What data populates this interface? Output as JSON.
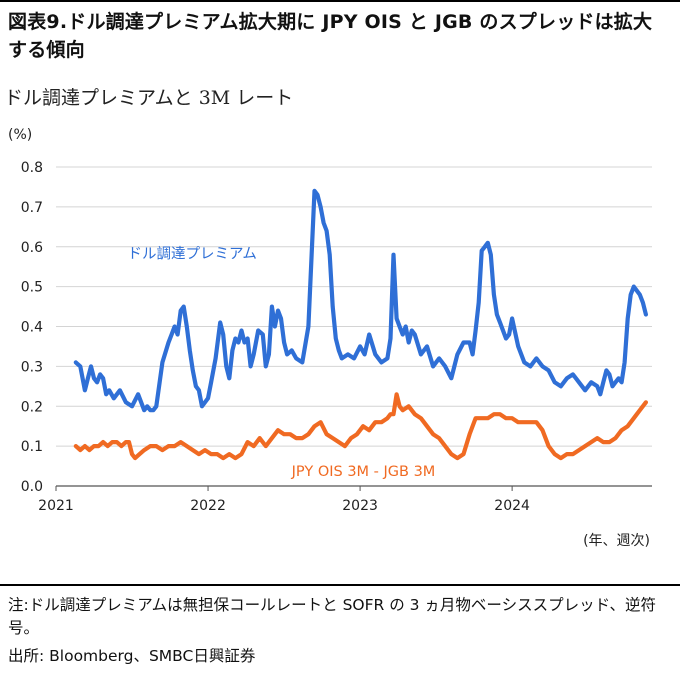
{
  "figure": {
    "title": "図表9.ドル調達プレミアム拡大期に JPY OIS と JGB のスプレッドは拡大する傾向"
  },
  "chart_data": {
    "type": "line",
    "title": "ドル調達プレミアムと 3M レート",
    "ylabel": "(%)",
    "xlabel": "(年、週次)",
    "ylim": [
      0,
      0.8
    ],
    "yticks": [
      "0.0",
      "0.1",
      "0.2",
      "0.3",
      "0.4",
      "0.5",
      "0.6",
      "0.7",
      "0.8"
    ],
    "xticks": [
      "2021",
      "2022",
      "2023",
      "2024"
    ],
    "grid": true,
    "series": [
      {
        "name": "ドル調達プレミアム",
        "color": "#2f6fd6",
        "x": [
          2021.13,
          2021.16,
          2021.19,
          2021.21,
          2021.23,
          2021.25,
          2021.27,
          2021.29,
          2021.31,
          2021.33,
          2021.35,
          2021.38,
          2021.42,
          2021.46,
          2021.5,
          2021.54,
          2021.58,
          2021.6,
          2021.62,
          2021.64,
          2021.66,
          2021.7,
          2021.74,
          2021.76,
          2021.78,
          2021.8,
          2021.82,
          2021.84,
          2021.86,
          2021.88,
          2021.9,
          2021.92,
          2021.94,
          2021.96,
          2021.98,
          2022.0,
          2022.02,
          2022.05,
          2022.08,
          2022.1,
          2022.12,
          2022.14,
          2022.16,
          2022.18,
          2022.2,
          2022.22,
          2022.24,
          2022.26,
          2022.28,
          2022.3,
          2022.33,
          2022.36,
          2022.38,
          2022.4,
          2022.42,
          2022.44,
          2022.46,
          2022.48,
          2022.5,
          2022.52,
          2022.55,
          2022.58,
          2022.62,
          2022.66,
          2022.7,
          2022.72,
          2022.74,
          2022.76,
          2022.78,
          2022.8,
          2022.82,
          2022.84,
          2022.86,
          2022.88,
          2022.92,
          2022.96,
          2023.0,
          2023.03,
          2023.06,
          2023.1,
          2023.14,
          2023.18,
          2023.2,
          2023.22,
          2023.24,
          2023.26,
          2023.28,
          2023.3,
          2023.32,
          2023.34,
          2023.36,
          2023.4,
          2023.44,
          2023.48,
          2023.52,
          2023.56,
          2023.6,
          2023.64,
          2023.68,
          2023.72,
          2023.74,
          2023.76,
          2023.78,
          2023.8,
          2023.82,
          2023.84,
          2023.86,
          2023.88,
          2023.9,
          2023.92,
          2023.94,
          2023.96,
          2023.98,
          2024.0,
          2024.04,
          2024.08,
          2024.12,
          2024.16,
          2024.2,
          2024.24,
          2024.28,
          2024.32,
          2024.36,
          2024.4,
          2024.44,
          2024.48,
          2024.52,
          2024.56,
          2024.58,
          2024.6,
          2024.62,
          2024.64,
          2024.66,
          2024.68,
          2024.7,
          2024.72,
          2024.74,
          2024.76,
          2024.78,
          2024.8,
          2024.82,
          2024.84,
          2024.86,
          2024.88
        ],
        "y": [
          0.31,
          0.3,
          0.24,
          0.27,
          0.3,
          0.27,
          0.26,
          0.28,
          0.27,
          0.23,
          0.24,
          0.22,
          0.24,
          0.21,
          0.2,
          0.23,
          0.19,
          0.2,
          0.19,
          0.19,
          0.2,
          0.31,
          0.36,
          0.38,
          0.4,
          0.38,
          0.44,
          0.45,
          0.4,
          0.34,
          0.29,
          0.25,
          0.24,
          0.2,
          0.21,
          0.22,
          0.26,
          0.32,
          0.41,
          0.38,
          0.3,
          0.27,
          0.34,
          0.37,
          0.36,
          0.39,
          0.36,
          0.37,
          0.3,
          0.33,
          0.39,
          0.38,
          0.3,
          0.33,
          0.45,
          0.4,
          0.44,
          0.42,
          0.36,
          0.33,
          0.34,
          0.32,
          0.31,
          0.4,
          0.74,
          0.73,
          0.7,
          0.66,
          0.64,
          0.58,
          0.45,
          0.37,
          0.34,
          0.32,
          0.33,
          0.32,
          0.35,
          0.33,
          0.38,
          0.33,
          0.31,
          0.32,
          0.37,
          0.58,
          0.42,
          0.4,
          0.38,
          0.4,
          0.36,
          0.39,
          0.38,
          0.33,
          0.35,
          0.3,
          0.32,
          0.3,
          0.27,
          0.33,
          0.36,
          0.36,
          0.33,
          0.39,
          0.46,
          0.59,
          0.6,
          0.61,
          0.58,
          0.48,
          0.43,
          0.41,
          0.39,
          0.37,
          0.38,
          0.42,
          0.35,
          0.31,
          0.3,
          0.32,
          0.3,
          0.29,
          0.26,
          0.25,
          0.27,
          0.28,
          0.26,
          0.24,
          0.26,
          0.25,
          0.23,
          0.26,
          0.29,
          0.28,
          0.25,
          0.26,
          0.27,
          0.26,
          0.31,
          0.42,
          0.48,
          0.5,
          0.49,
          0.48,
          0.46,
          0.43
        ]
      },
      {
        "name": "JPY OIS 3M - JGB 3M",
        "color": "#f06a22",
        "x": [
          2021.13,
          2021.16,
          2021.19,
          2021.22,
          2021.25,
          2021.28,
          2021.31,
          2021.34,
          2021.37,
          2021.4,
          2021.43,
          2021.46,
          2021.48,
          2021.5,
          2021.52,
          2021.55,
          2021.58,
          2021.62,
          2021.66,
          2021.7,
          2021.74,
          2021.78,
          2021.82,
          2021.86,
          2021.9,
          2021.94,
          2021.98,
          2022.02,
          2022.06,
          2022.1,
          2022.14,
          2022.18,
          2022.22,
          2022.26,
          2022.3,
          2022.34,
          2022.38,
          2022.42,
          2022.46,
          2022.5,
          2022.54,
          2022.58,
          2022.62,
          2022.66,
          2022.7,
          2022.74,
          2022.78,
          2022.82,
          2022.86,
          2022.9,
          2022.94,
          2022.98,
          2023.02,
          2023.06,
          2023.1,
          2023.14,
          2023.18,
          2023.2,
          2023.22,
          2023.24,
          2023.26,
          2023.28,
          2023.32,
          2023.36,
          2023.4,
          2023.44,
          2023.48,
          2023.52,
          2023.56,
          2023.6,
          2023.64,
          2023.68,
          2023.72,
          2023.76,
          2023.8,
          2023.84,
          2023.88,
          2023.92,
          2023.96,
          2024.0,
          2024.04,
          2024.08,
          2024.12,
          2024.16,
          2024.2,
          2024.24,
          2024.28,
          2024.32,
          2024.36,
          2024.4,
          2024.44,
          2024.48,
          2024.52,
          2024.56,
          2024.6,
          2024.64,
          2024.68,
          2024.72,
          2024.76,
          2024.8,
          2024.84,
          2024.88
        ],
        "y": [
          0.1,
          0.09,
          0.1,
          0.09,
          0.1,
          0.1,
          0.11,
          0.1,
          0.11,
          0.11,
          0.1,
          0.11,
          0.11,
          0.08,
          0.07,
          0.08,
          0.09,
          0.1,
          0.1,
          0.09,
          0.1,
          0.1,
          0.11,
          0.1,
          0.09,
          0.08,
          0.09,
          0.08,
          0.08,
          0.07,
          0.08,
          0.07,
          0.08,
          0.11,
          0.1,
          0.12,
          0.1,
          0.12,
          0.14,
          0.13,
          0.13,
          0.12,
          0.12,
          0.13,
          0.15,
          0.16,
          0.13,
          0.12,
          0.11,
          0.1,
          0.12,
          0.13,
          0.15,
          0.14,
          0.16,
          0.16,
          0.17,
          0.18,
          0.18,
          0.23,
          0.2,
          0.19,
          0.2,
          0.18,
          0.17,
          0.15,
          0.13,
          0.12,
          0.1,
          0.08,
          0.07,
          0.08,
          0.13,
          0.17,
          0.17,
          0.17,
          0.18,
          0.18,
          0.17,
          0.17,
          0.16,
          0.16,
          0.16,
          0.16,
          0.14,
          0.1,
          0.08,
          0.07,
          0.08,
          0.08,
          0.09,
          0.1,
          0.11,
          0.12,
          0.11,
          0.11,
          0.12,
          0.14,
          0.15,
          0.17,
          0.19,
          0.21
        ]
      }
    ],
    "annotations": [
      {
        "text": "ドル調達プレミアム",
        "x": 2021.47,
        "y": 0.57,
        "color": "#2f6fd6"
      },
      {
        "text": "JPY OIS 3M - JGB 3M",
        "x": 2022.55,
        "y": 0.025,
        "color": "#f06a22"
      }
    ]
  },
  "notes": {
    "line1": "注:ドル調達プレミアムは無担保コールレートと SOFR の 3 ヵ月物ベーシススプレッド、逆符号。",
    "line2": "出所: Bloomberg、SMBC日興証券"
  }
}
